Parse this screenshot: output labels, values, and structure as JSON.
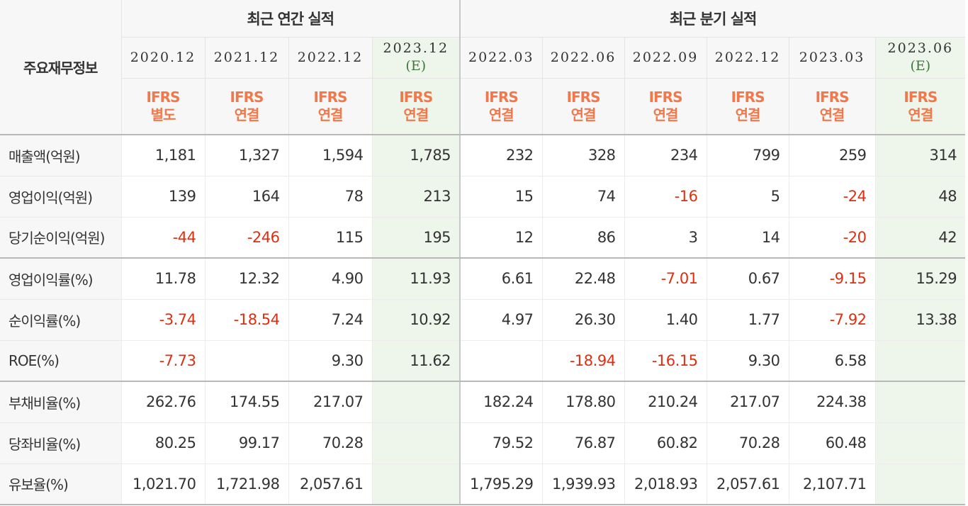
{
  "header": {
    "corner_label": "주요재무정보",
    "annual_title": "최근 연간 실적",
    "quarter_title": "최근 분기 실적"
  },
  "periods": [
    {
      "date": "2020.12",
      "est": "",
      "ifrs1": "IFRS",
      "ifrs2": "별도"
    },
    {
      "date": "2021.12",
      "est": "",
      "ifrs1": "IFRS",
      "ifrs2": "연결"
    },
    {
      "date": "2022.12",
      "est": "",
      "ifrs1": "IFRS",
      "ifrs2": "연결"
    },
    {
      "date": "2023.12",
      "est": "(E)",
      "ifrs1": "IFRS",
      "ifrs2": "연결"
    },
    {
      "date": "2022.03",
      "est": "",
      "ifrs1": "IFRS",
      "ifrs2": "연결"
    },
    {
      "date": "2022.06",
      "est": "",
      "ifrs1": "IFRS",
      "ifrs2": "연결"
    },
    {
      "date": "2022.09",
      "est": "",
      "ifrs1": "IFRS",
      "ifrs2": "연결"
    },
    {
      "date": "2022.12",
      "est": "",
      "ifrs1": "IFRS",
      "ifrs2": "연결"
    },
    {
      "date": "2023.03",
      "est": "",
      "ifrs1": "IFRS",
      "ifrs2": "연결"
    },
    {
      "date": "2023.06",
      "est": "(E)",
      "ifrs1": "IFRS",
      "ifrs2": "연결"
    }
  ],
  "rows": [
    {
      "label": "매출액(억원)",
      "values": [
        "1,181",
        "1,327",
        "1,594",
        "1,785",
        "232",
        "328",
        "234",
        "799",
        "259",
        "314"
      ]
    },
    {
      "label": "영업이익(억원)",
      "values": [
        "139",
        "164",
        "78",
        "213",
        "15",
        "74",
        "-16",
        "5",
        "-24",
        "48"
      ]
    },
    {
      "label": "당기순이익(억원)",
      "values": [
        "-44",
        "-246",
        "115",
        "195",
        "12",
        "86",
        "3",
        "14",
        "-20",
        "42"
      ]
    },
    {
      "label": "영업이익률(%)",
      "values": [
        "11.78",
        "12.32",
        "4.90",
        "11.93",
        "6.61",
        "22.48",
        "-7.01",
        "0.67",
        "-9.15",
        "15.29"
      ]
    },
    {
      "label": "순이익률(%)",
      "values": [
        "-3.74",
        "-18.54",
        "7.24",
        "10.92",
        "4.97",
        "26.30",
        "1.40",
        "1.77",
        "-7.92",
        "13.38"
      ]
    },
    {
      "label": "ROE(%)",
      "values": [
        "-7.73",
        "",
        "9.30",
        "11.62",
        "",
        "-18.94",
        "-16.15",
        "9.30",
        "6.58",
        ""
      ]
    },
    {
      "label": "부채비율(%)",
      "values": [
        "262.76",
        "174.55",
        "217.07",
        "",
        "182.24",
        "178.80",
        "210.24",
        "217.07",
        "224.38",
        ""
      ]
    },
    {
      "label": "당좌비율(%)",
      "values": [
        "80.25",
        "99.17",
        "70.28",
        "",
        "79.52",
        "76.87",
        "60.82",
        "70.28",
        "60.48",
        ""
      ]
    },
    {
      "label": "유보율(%)",
      "values": [
        "1,021.70",
        "1,721.98",
        "2,057.61",
        "",
        "1,795.29",
        "1,939.93",
        "2,018.93",
        "2,057.61",
        "2,107.71",
        ""
      ]
    }
  ],
  "colors": {
    "negative": "#e02e0e",
    "ifrs": "#f0784a",
    "estimate_bg": "#eef5ea",
    "estimate_text": "#3a7a3a"
  }
}
